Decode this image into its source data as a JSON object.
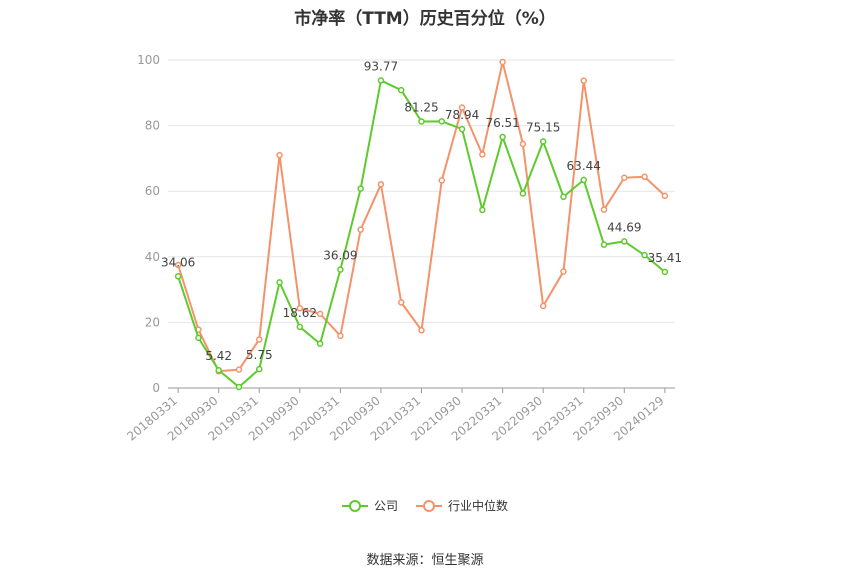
{
  "chart_data": {
    "type": "line",
    "title": "市净率（TTM）历史百分位（%）",
    "x_tick_labels": [
      "20180331",
      "20180930",
      "20190331",
      "20190930",
      "20200331",
      "20200930",
      "20210331",
      "20210930",
      "20220331",
      "20220930",
      "20230331",
      "20230930",
      "20240129"
    ],
    "ylim": [
      0,
      100
    ],
    "y_ticks": [
      0,
      20,
      40,
      60,
      80,
      100
    ],
    "grid": true,
    "legend_position": "bottom",
    "series": [
      {
        "name": "公司",
        "color": "#5dcb2c",
        "values": [
          34.06,
          15.3,
          5.42,
          0.3,
          5.75,
          32.2,
          18.62,
          13.5,
          36.09,
          60.8,
          93.77,
          90.8,
          81.25,
          81.3,
          78.94,
          54.3,
          76.51,
          59.3,
          75.15,
          58.3,
          63.44,
          43.7,
          44.69,
          40.5,
          35.41
        ],
        "labels": [
          "34.06",
          "",
          "5.42",
          "",
          "5.75",
          "",
          "18.62",
          "",
          "36.09",
          "",
          "93.77",
          "",
          "81.25",
          "",
          "78.94",
          "",
          "76.51",
          "",
          "75.15",
          "",
          "63.44",
          "",
          "44.69",
          "",
          "35.41"
        ]
      },
      {
        "name": "行业中位数",
        "color": "#f4936a",
        "values": [
          37.5,
          17.8,
          5.1,
          5.6,
          14.8,
          71.0,
          24.3,
          22.6,
          15.9,
          48.3,
          62.1,
          26.1,
          17.6,
          63.3,
          85.5,
          71.2,
          99.4,
          74.4,
          25.0,
          35.5,
          93.7,
          54.4,
          64.1,
          64.4,
          58.6
        ]
      }
    ]
  },
  "legend": {
    "company": "公司",
    "industry": "行业中位数"
  },
  "source": "数据来源：恒生聚源"
}
